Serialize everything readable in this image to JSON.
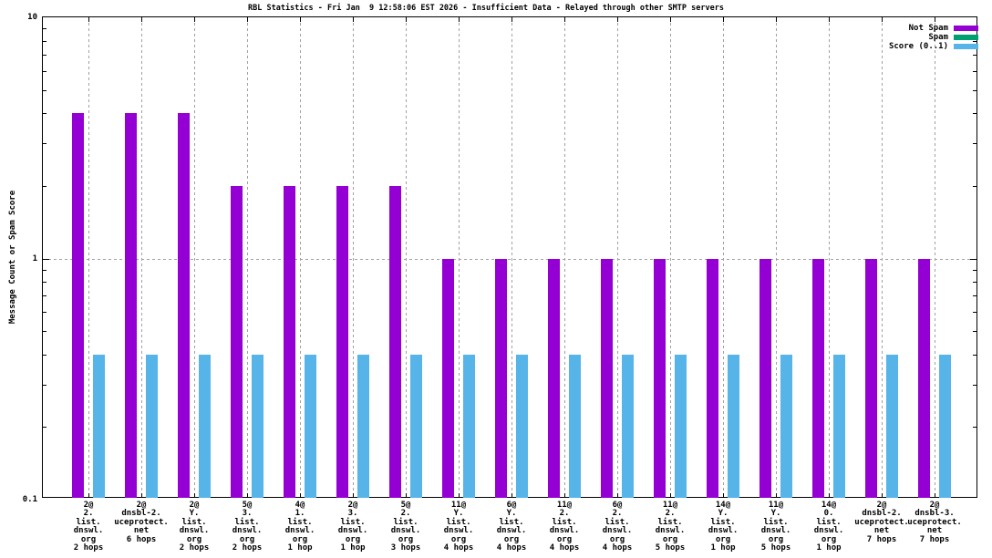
{
  "chart_data": {
    "type": "bar",
    "title": "RBL Statistics - Fri Jan  9 12:58:06 EST 2026 - Insufficient Data - Relayed through other SMTP servers",
    "ylabel": "Message Count or Spam Score",
    "xlabel": "",
    "yscale": "log",
    "ylim": [
      0.1,
      10
    ],
    "yticks": [
      {
        "value": 10,
        "label": "10"
      },
      {
        "value": 1,
        "label": "1"
      },
      {
        "value": 0.1,
        "label": "0.1"
      }
    ],
    "grid": true,
    "legend_position": "top-right-inside",
    "background_color": "#ffffff",
    "grid_color": "#a0a0a0",
    "categories": [
      [
        "2@",
        "2.",
        "list.",
        "dnswl.",
        "org",
        "2 hops"
      ],
      [
        "2@",
        "dnsbl-2.",
        "uceprotect.",
        "net",
        "6 hops"
      ],
      [
        "2@",
        "Y.",
        "list.",
        "dnswl.",
        "org",
        "2 hops"
      ],
      [
        "5@",
        "3.",
        "list.",
        "dnswl.",
        "org",
        "2 hops"
      ],
      [
        "4@",
        "1.",
        "list.",
        "dnswl.",
        "org",
        "1 hop"
      ],
      [
        "2@",
        "3.",
        "list.",
        "dnswl.",
        "org",
        "1 hop"
      ],
      [
        "5@",
        "2.",
        "list.",
        "dnswl.",
        "org",
        "3 hops"
      ],
      [
        "11@",
        "Y.",
        "list.",
        "dnswl.",
        "org",
        "4 hops"
      ],
      [
        "6@",
        "Y.",
        "list.",
        "dnswl.",
        "org",
        "4 hops"
      ],
      [
        "11@",
        "2.",
        "list.",
        "dnswl.",
        "org",
        "4 hops"
      ],
      [
        "6@",
        "2.",
        "list.",
        "dnswl.",
        "org",
        "4 hops"
      ],
      [
        "11@",
        "2.",
        "list.",
        "dnswl.",
        "org",
        "5 hops"
      ],
      [
        "14@",
        "Y.",
        "list.",
        "dnswl.",
        "org",
        "1 hop"
      ],
      [
        "11@",
        "Y.",
        "list.",
        "dnswl.",
        "org",
        "5 hops"
      ],
      [
        "14@",
        "0.",
        "list.",
        "dnswl.",
        "org",
        "1 hop"
      ],
      [
        "2@",
        "dnsbl-2.",
        "uceprotect.",
        "net",
        "7 hops"
      ],
      [
        "2@",
        "dnsbl-3.",
        "uceprotect.",
        "net",
        "7 hops"
      ]
    ],
    "series": [
      {
        "name": "Not Spam",
        "color": "#9400d3",
        "values": [
          4,
          4,
          4,
          2,
          2,
          2,
          2,
          1,
          1,
          1,
          1,
          1,
          1,
          1,
          1,
          1,
          1
        ]
      },
      {
        "name": "Spam",
        "color": "#009e73",
        "values": [
          0,
          0,
          0,
          0,
          0,
          0,
          0,
          0,
          0,
          0,
          0,
          0,
          0,
          0,
          0,
          0,
          0
        ]
      },
      {
        "name": "Score (0..1)",
        "color": "#56b4e9",
        "values": [
          0.4,
          0.4,
          0.4,
          0.4,
          0.4,
          0.4,
          0.4,
          0.4,
          0.4,
          0.4,
          0.4,
          0.4,
          0.4,
          0.4,
          0.4,
          0.4,
          0.4
        ]
      }
    ]
  }
}
